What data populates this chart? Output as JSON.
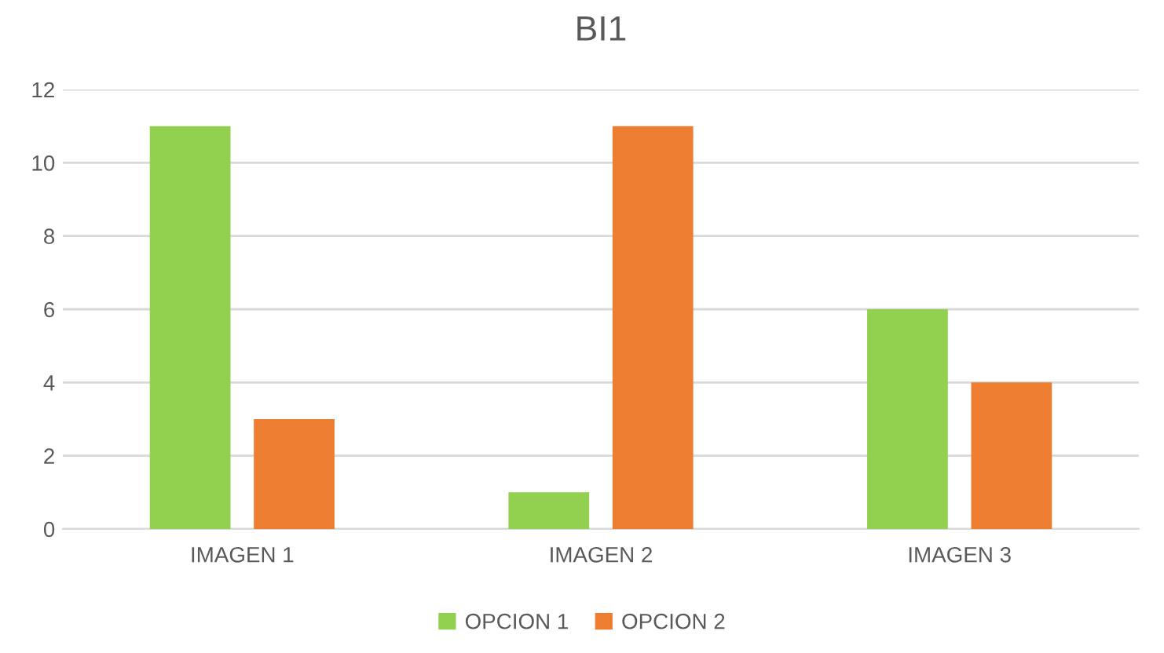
{
  "chart_data": {
    "type": "bar",
    "title": "BI1",
    "categories": [
      "IMAGEN 1",
      "IMAGEN 2",
      "IMAGEN 3"
    ],
    "series": [
      {
        "name": "OPCION 1",
        "color": "#92d050",
        "values": [
          11,
          1,
          6
        ]
      },
      {
        "name": "OPCION 2",
        "color": "#ed7d31",
        "values": [
          3,
          11,
          4
        ]
      }
    ],
    "ylim": [
      0,
      12
    ],
    "yticks": [
      0,
      2,
      4,
      6,
      8,
      10,
      12
    ],
    "grid": "y",
    "legend": "bottom"
  }
}
